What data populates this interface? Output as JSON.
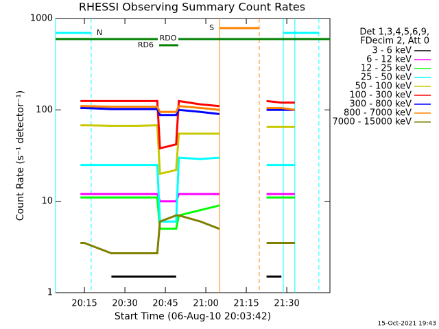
{
  "chart_data": {
    "type": "line",
    "title": "RHESSI Observing Summary Count Rates",
    "xlabel": "Start Time (06-Aug-10 20:03:42)",
    "ylabel": "Count Rate (s⁻¹ detector⁻¹)",
    "legend_header": [
      "Det 1,3,4,5,6,9,",
      "FDecim 2, Att 0"
    ],
    "footer": "15-Oct-2021 19:43",
    "log_y": true,
    "xlim": [
      1204.3,
      1306
    ],
    "ylim": [
      1,
      1000
    ],
    "xticks": [
      {
        "value": 1215,
        "label": "20:15"
      },
      {
        "value": 1230,
        "label": "20:30"
      },
      {
        "value": 1245,
        "label": "20:45"
      },
      {
        "value": 1260,
        "label": "21:00"
      },
      {
        "value": 1275,
        "label": "21:15"
      },
      {
        "value": 1290,
        "label": "21:30"
      }
    ],
    "yticks": [
      1,
      10,
      100,
      1000
    ],
    "x": [
      1213.5,
      1215,
      1225,
      1235,
      1242,
      1243,
      1249,
      1250,
      1258,
      1265,
      1266,
      1282.5,
      1288,
      1293
    ],
    "series": [
      {
        "name": "3 - 6 keV",
        "color": "#000000",
        "values": [
          null,
          null,
          1.5,
          1.5,
          1.5,
          1.5,
          1.5,
          null,
          null,
          null,
          null,
          1.5,
          1.5,
          null
        ]
      },
      {
        "name": "6 - 12 keV",
        "color": "#ff00ff",
        "values": [
          12,
          12,
          12,
          12,
          12,
          10,
          10,
          12,
          12,
          12,
          null,
          12,
          12,
          12
        ]
      },
      {
        "name": "12 - 25 keV",
        "color": "#00ff00",
        "values": [
          11,
          11,
          11,
          11,
          11,
          5,
          5,
          7,
          8,
          9,
          null,
          11,
          11,
          11
        ]
      },
      {
        "name": "25 - 50 keV",
        "color": "#00ffff",
        "values": [
          25,
          25,
          25,
          25,
          25,
          6,
          6,
          30,
          29,
          30,
          null,
          25,
          25,
          25
        ]
      },
      {
        "name": "50 - 100 keV",
        "color": "#c8c800",
        "values": [
          68,
          68,
          67,
          67,
          68,
          20,
          22,
          55,
          55,
          55,
          null,
          65,
          65,
          65
        ]
      },
      {
        "name": "100 - 300 keV",
        "color": "#ff0000",
        "values": [
          125,
          125,
          125,
          125,
          125,
          38,
          42,
          125,
          115,
          110,
          null,
          125,
          120,
          120
        ]
      },
      {
        "name": "300 - 800 keV",
        "color": "#0000ff",
        "values": [
          105,
          105,
          102,
          102,
          102,
          88,
          88,
          100,
          95,
          90,
          null,
          100,
          100,
          100
        ]
      },
      {
        "name": "800 - 7000 keV",
        "color": "#ff8000",
        "values": [
          110,
          110,
          108,
          108,
          108,
          95,
          95,
          110,
          105,
          100,
          null,
          105,
          105,
          100
        ]
      },
      {
        "name": "7000 - 15000 keV",
        "color": "#808000",
        "values": [
          3.5,
          3.5,
          2.7,
          2.7,
          2.7,
          6,
          7,
          7,
          6,
          5,
          null,
          3.5,
          3.5,
          3.5
        ]
      }
    ],
    "flags": [
      {
        "label": "N",
        "color": "#00ffff",
        "start": 1204.3,
        "end": 1217.5
      },
      {
        "color": "#00ffff",
        "start": 1288.7,
        "end": 1301.9
      },
      {
        "label": "S",
        "color": "#ff8000",
        "start": 1265.1,
        "end": 1279.8
      },
      {
        "label": "RDO",
        "color": "#008000",
        "start": 1204.3,
        "end": 1306
      },
      {
        "label": "RD6",
        "color": "#008000",
        "start": 1242.7,
        "end": 1249.8
      }
    ],
    "markers": [
      {
        "x": 1204.3,
        "color": "#00ffff",
        "dashed": false
      },
      {
        "x": 1217.5,
        "color": "#00ffff",
        "dashed": true
      },
      {
        "x": 1288.7,
        "color": "#00ffff",
        "dashed": false
      },
      {
        "x": 1293,
        "color": "#00ffff",
        "dashed": false
      },
      {
        "x": 1301.9,
        "color": "#00ffff",
        "dashed": true
      },
      {
        "x": 1265.1,
        "color": "#ff8000",
        "dashed": false
      },
      {
        "x": 1279.8,
        "color": "#ff8000",
        "dashed": true
      }
    ]
  }
}
